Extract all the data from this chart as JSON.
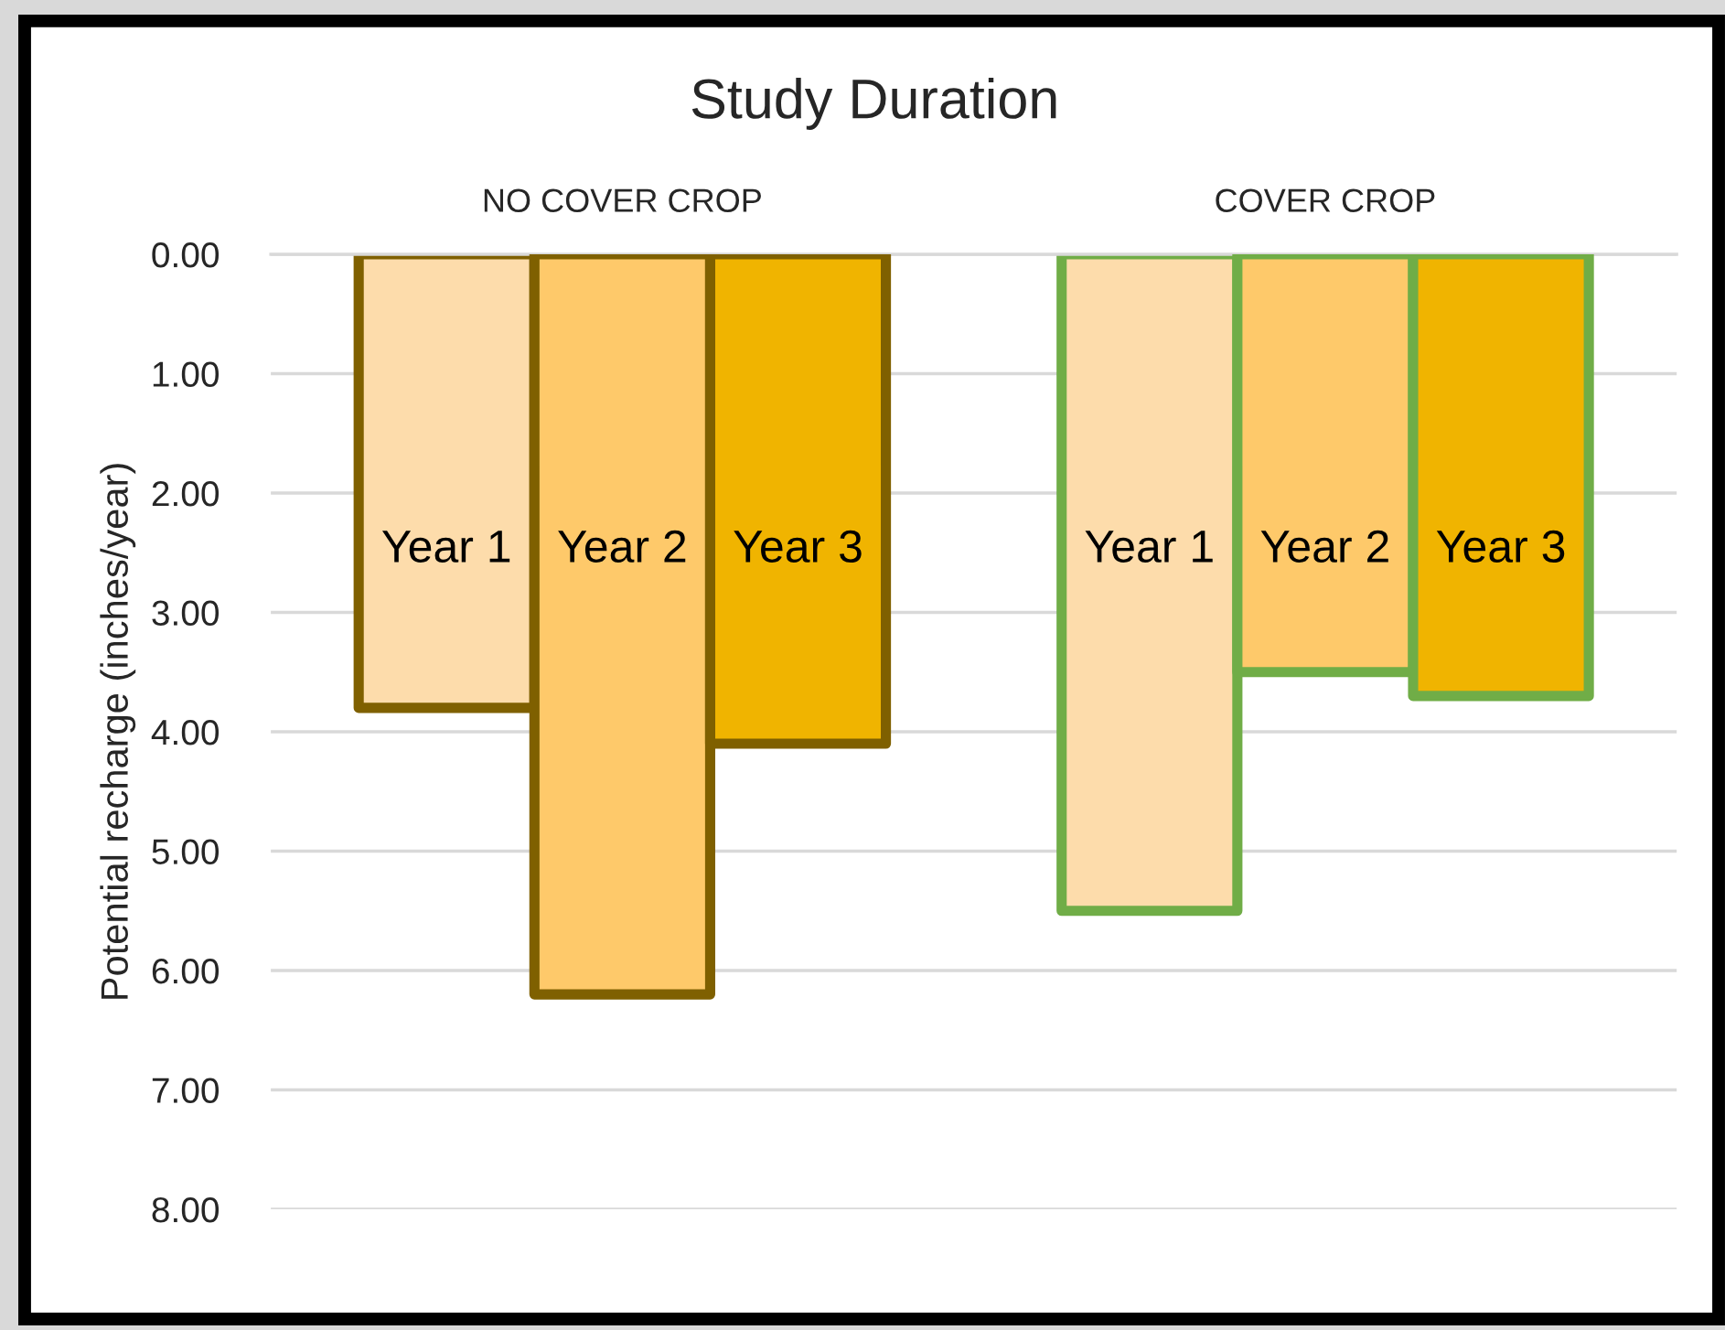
{
  "chart_data": {
    "type": "bar",
    "title": "Study Duration",
    "ylabel": "Potential recharge (inches/year)",
    "categories": [
      "NO COVER CROP",
      "COVER CROP"
    ],
    "series": [
      {
        "name": "Year 1",
        "color": "#fddcab",
        "values": [
          3.8,
          5.5
        ]
      },
      {
        "name": "Year 2",
        "color": "#fec96a",
        "values": [
          6.2,
          3.5
        ]
      },
      {
        "name": "Year 3",
        "color": "#f0b400",
        "values": [
          4.1,
          3.7
        ]
      }
    ],
    "ylim": [
      8,
      0
    ],
    "yticks": [
      {
        "value": 0,
        "label": "0.00"
      },
      {
        "value": 1,
        "label": "1.00"
      },
      {
        "value": 2,
        "label": "2.00"
      },
      {
        "value": 3,
        "label": "3.00"
      },
      {
        "value": 4,
        "label": "4.00"
      },
      {
        "value": 5,
        "label": "5.00"
      },
      {
        "value": 6,
        "label": "6.00"
      },
      {
        "value": 7,
        "label": "7.00"
      },
      {
        "value": 8,
        "label": "8.00"
      }
    ],
    "grid": "y"
  }
}
